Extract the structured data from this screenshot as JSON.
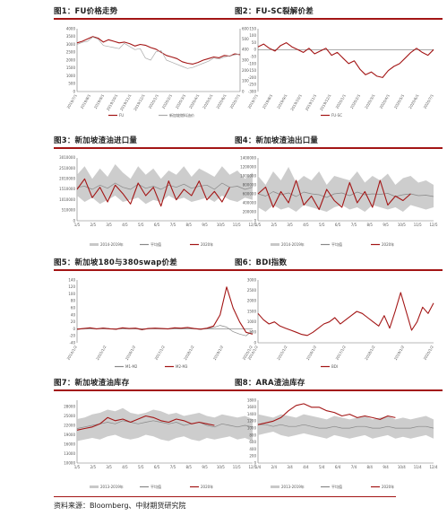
{
  "footer": "资料来源：Bloomberg、中财期货研究院",
  "colors": {
    "accent": "#a31515",
    "series_main": "#a31515",
    "series_gray": "#aaaaaa",
    "band": "#c8c8c8",
    "avg": "#888888"
  },
  "chart_data": [
    {
      "id": "fu-price",
      "type": "line",
      "title": "图1：FU价格走势",
      "x_ticks": [
        "2019/7/1",
        "2019/8/1",
        "2019/9/1",
        "2019/10/1",
        "2019/11/1",
        "2019/12/1",
        "2020/1/1",
        "2020/2/1",
        "2020/3/1",
        "2020/4/1",
        "2020/5/1",
        "2020/6/1",
        "2020/7/1"
      ],
      "ylim": [
        0,
        4000
      ],
      "y_ticks": [
        "0",
        "500",
        "1000",
        "1500",
        "2000",
        "2500",
        "3000",
        "3500",
        "4000"
      ],
      "y2lim": [
        0,
        600
      ],
      "y2_ticks": [
        "0",
        "100",
        "200",
        "300",
        "400",
        "500",
        "600"
      ],
      "series": [
        {
          "name": "FU",
          "axis": "left",
          "color": "#a31515",
          "values": [
            3100,
            3200,
            3350,
            3500,
            3400,
            3150,
            3300,
            3200,
            3100,
            3150,
            3050,
            2900,
            3000,
            2950,
            2800,
            2700,
            2500,
            2300,
            2200,
            2100,
            1900,
            1800,
            1750,
            1850,
            2000,
            2100,
            2200,
            2150,
            2300,
            2250,
            2400,
            2350
          ]
        },
        {
          "name": "新加坡燃料油价",
          "axis": "right",
          "color": "#aaaaaa",
          "values": [
            450,
            470,
            480,
            520,
            500,
            440,
            430,
            420,
            410,
            460,
            430,
            400,
            410,
            320,
            300,
            380,
            390,
            300,
            280,
            260,
            240,
            220,
            230,
            250,
            270,
            290,
            320,
            310,
            330,
            340,
            350,
            360
          ]
        }
      ]
    },
    {
      "id": "fu-sc-spread",
      "type": "line",
      "title": "图2：FU-SC裂解价差",
      "x_ticks": [
        "2019/7/1",
        "2019/8/1",
        "2019/9/1",
        "2019/10/1",
        "2019/11/1",
        "2019/12/1",
        "2020/1/1",
        "2020/2/1",
        "2020/3/1",
        "2020/4/1",
        "2020/5/1",
        "2020/6/1",
        "2020/7/1"
      ],
      "ylim": [
        -300,
        150
      ],
      "y_ticks": [
        "-300",
        "-250",
        "-200",
        "-150",
        "-100",
        "-50",
        "0",
        "50",
        "100",
        "150"
      ],
      "series": [
        {
          "name": "FU-SC",
          "color": "#a31515",
          "values": [
            20,
            40,
            10,
            -10,
            30,
            50,
            20,
            0,
            -20,
            10,
            -30,
            -10,
            10,
            -40,
            -20,
            -60,
            -100,
            -80,
            -140,
            -180,
            -160,
            -190,
            -200,
            -150,
            -120,
            -100,
            -60,
            -20,
            10,
            -20,
            -40,
            0
          ]
        }
      ]
    },
    {
      "id": "sg-imports",
      "type": "line",
      "title": "图3：新加坡渣油进口量",
      "x_ticks": [
        "1/5",
        "2/5",
        "3/5",
        "4/5",
        "5/5",
        "6/5",
        "7/5",
        "8/5",
        "9/5",
        "10/5",
        "11/5",
        "12/5"
      ],
      "ylim": [
        0,
        3000000
      ],
      "y_ticks": [
        "0",
        "510000",
        "1010000",
        "1510000",
        "2010000",
        "2510000",
        "3010000"
      ],
      "series": [
        {
          "name": "2014-2019年",
          "kind": "band",
          "color": "#c8c8c8",
          "values_low": [
            1200000,
            900000,
            1100000,
            800000,
            1000000,
            1200000,
            900000,
            1000000,
            1100000,
            800000,
            1000000,
            900000,
            1200000,
            1000000,
            1100000,
            900000,
            1000000,
            1100000,
            900000,
            1200000,
            1000000,
            900000,
            1100000,
            1000000
          ],
          "values_high": [
            2200000,
            2600000,
            2000000,
            2500000,
            2100000,
            2700000,
            2300000,
            2000000,
            2600000,
            2200000,
            2500000,
            2000000,
            2400000,
            2200000,
            2600000,
            2100000,
            2500000,
            2300000,
            2100000,
            2600000,
            2200000,
            2400000,
            2000000,
            2300000
          ]
        },
        {
          "name": "平均值",
          "color": "#888888",
          "values": [
            1600000,
            1650000,
            1500000,
            1700000,
            1550000,
            1800000,
            1600000,
            1500000,
            1750000,
            1550000,
            1650000,
            1500000,
            1700000,
            1600000,
            1750000,
            1550000,
            1650000,
            1700000,
            1500000,
            1800000,
            1600000,
            1650000,
            1500000,
            1600000
          ]
        },
        {
          "name": "2020年",
          "color": "#a31515",
          "values": [
            1500000,
            2000000,
            1100000,
            1600000,
            900000,
            1700000,
            1300000,
            800000,
            1800000,
            1200000,
            1600000,
            700000,
            1900000,
            1000000,
            1500000,
            1200000,
            1900000,
            1000000,
            1400000,
            900000,
            1600000
          ]
        }
      ]
    },
    {
      "id": "sg-exports",
      "type": "line",
      "title": "图4：新加坡渣油出口量",
      "x_ticks": [
        "1/5",
        "2/5",
        "3/5",
        "4/5",
        "5/5",
        "6/5",
        "7/5",
        "8/5",
        "9/5",
        "10/5",
        "11/5",
        "12/5"
      ],
      "ylim": [
        0,
        1400000
      ],
      "y_ticks": [
        "0",
        "200000",
        "400000",
        "600000",
        "800000",
        "1000000",
        "1200000",
        "1400000"
      ],
      "series": [
        {
          "name": "2014-2019年",
          "kind": "band",
          "color": "#c8c8c8",
          "values_low": [
            300000,
            200000,
            350000,
            250000,
            300000,
            200000,
            350000,
            300000,
            250000,
            200000,
            300000,
            350000,
            250000,
            300000,
            200000,
            350000,
            300000,
            250000,
            300000,
            200000,
            350000,
            300000,
            250000,
            300000
          ],
          "values_high": [
            1000000,
            800000,
            1100000,
            900000,
            1200000,
            850000,
            1000000,
            900000,
            1100000,
            800000,
            1000000,
            950000,
            900000,
            1100000,
            850000,
            1000000,
            900000,
            1050000,
            800000,
            950000,
            1000000,
            850000,
            900000,
            800000
          ]
        },
        {
          "name": "平均值",
          "color": "#888888",
          "values": [
            600000,
            550000,
            650000,
            580000,
            620000,
            540000,
            640000,
            600000,
            580000,
            520000,
            600000,
            620000,
            560000,
            640000,
            580000,
            600000,
            590000,
            610000,
            540000,
            580000,
            600000,
            560000,
            570000,
            540000
          ]
        },
        {
          "name": "2020年",
          "color": "#a31515",
          "values": [
            600000,
            750000,
            300000,
            650000,
            400000,
            900000,
            350000,
            550000,
            250000,
            700000,
            450000,
            300000,
            850000,
            400000,
            650000,
            300000,
            900000,
            350000,
            550000,
            450000,
            600000
          ]
        }
      ]
    },
    {
      "id": "sg-180-380",
      "type": "line",
      "title": "图5：新加坡180与380swap价差",
      "x_ticks": [
        "2014/1/2",
        "2015/1/2",
        "2016/1/2",
        "2017/1/2",
        "2018/1/2",
        "2019/1/2",
        "2020/1/2"
      ],
      "ylim": [
        -40,
        140
      ],
      "y_ticks": [
        "-40",
        "-20",
        "0",
        "20",
        "40",
        "60",
        "80",
        "100",
        "120",
        "140"
      ],
      "series": [
        {
          "name": "M1-M2",
          "color": "#888888",
          "values": [
            -2,
            0,
            2,
            -1,
            3,
            1,
            -2,
            2,
            0,
            1,
            -3,
            2,
            1,
            0,
            -1,
            2,
            1,
            3,
            0,
            -2,
            1,
            4,
            10,
            5,
            -8,
            -15,
            -20,
            -5
          ]
        },
        {
          "name": "M2-M3",
          "color": "#a31515",
          "values": [
            -1,
            1,
            3,
            0,
            2,
            0,
            -1,
            3,
            1,
            2,
            -2,
            1,
            2,
            1,
            0,
            3,
            2,
            4,
            1,
            -1,
            2,
            8,
            40,
            120,
            60,
            20,
            -10,
            -15
          ]
        }
      ]
    },
    {
      "id": "bdi",
      "type": "line",
      "title": "图6：BDI指数",
      "x_ticks": [
        "2014/1/2",
        "2015/1/2",
        "2016/1/2",
        "2017/1/2",
        "2018/1/2",
        "2019/1/2",
        "2020/1/2"
      ],
      "ylim": [
        0,
        3000
      ],
      "y_ticks": [
        "0",
        "500",
        "1000",
        "1500",
        "2000",
        "2500",
        "3000"
      ],
      "series": [
        {
          "name": "BDI",
          "color": "#a31515",
          "values": [
            1400,
            1100,
            900,
            1000,
            800,
            700,
            600,
            500,
            400,
            350,
            500,
            700,
            900,
            1000,
            1200,
            900,
            1100,
            1300,
            1500,
            1400,
            1200,
            1000,
            800,
            1300,
            700,
            1500,
            2400,
            1500,
            600,
            1000,
            1700,
            1400,
            1900
          ]
        }
      ]
    },
    {
      "id": "sg-inventory",
      "type": "line",
      "title": "图7：新加坡渣油库存",
      "x_ticks": [
        "1/5",
        "2/5",
        "3/5",
        "4/5",
        "5/5",
        "6/5",
        "7/5",
        "8/5",
        "9/5",
        "10/5",
        "11/5",
        "12/5"
      ],
      "ylim": [
        10000,
        30000
      ],
      "y_ticks": [
        "10000",
        "13000",
        "16000",
        "19000",
        "22000",
        "25000",
        "28000"
      ],
      "series": [
        {
          "name": "2013-2019年",
          "kind": "band",
          "color": "#c8c8c8",
          "values_low": [
            17000,
            17500,
            18000,
            17500,
            18500,
            19000,
            18000,
            17500,
            18000,
            19000,
            18500,
            17500,
            17000,
            18000,
            18500,
            17500,
            17000,
            18000,
            17500,
            18000,
            18500,
            17500,
            18000,
            17000
          ],
          "values_high": [
            24000,
            24500,
            25500,
            26000,
            27000,
            26500,
            27500,
            26000,
            25500,
            26000,
            27000,
            26500,
            25500,
            26000,
            25000,
            25500,
            26000,
            25000,
            24500,
            25500,
            25000,
            24500,
            25000,
            24000
          ]
        },
        {
          "name": "平均值",
          "color": "#888888",
          "values": [
            21000,
            21500,
            22000,
            22500,
            23000,
            22500,
            23500,
            23000,
            22500,
            23000,
            23500,
            23000,
            22500,
            23000,
            22000,
            22500,
            23000,
            22000,
            21500,
            22500,
            22000,
            21500,
            22000,
            21500
          ]
        },
        {
          "name": "2020年",
          "color": "#a31515",
          "values": [
            20500,
            21000,
            21500,
            22500,
            24500,
            23500,
            24000,
            23000,
            24000,
            25000,
            24500,
            23500,
            23000,
            24000,
            23500,
            22500,
            23000,
            22500,
            22000
          ]
        }
      ]
    },
    {
      "id": "ara-inventory",
      "type": "line",
      "title": "图8：ARA渣油库存",
      "x_ticks": [
        "1/4",
        "2/4",
        "3/4",
        "4/4",
        "5/4",
        "6/4",
        "7/4",
        "8/4",
        "9/4",
        "10/4",
        "11/4",
        "12/4"
      ],
      "ylim": [
        0,
        1800
      ],
      "y_ticks": [
        "0",
        "200",
        "400",
        "600",
        "800",
        "1000",
        "1200",
        "1400",
        "1600",
        "1800"
      ],
      "series": [
        {
          "name": "2013-2019年",
          "kind": "band",
          "color": "#c8c8c8",
          "values_low": [
            800,
            850,
            900,
            800,
            750,
            800,
            850,
            800,
            750,
            700,
            800,
            750,
            700,
            750,
            800,
            700,
            750,
            800,
            700,
            750,
            700,
            750,
            800,
            700
          ],
          "values_high": [
            1400,
            1350,
            1300,
            1400,
            1350,
            1300,
            1400,
            1350,
            1300,
            1250,
            1350,
            1300,
            1250,
            1300,
            1350,
            1250,
            1300,
            1350,
            1250,
            1300,
            1250,
            1300,
            1350,
            1250
          ]
        },
        {
          "name": "平均值",
          "color": "#888888",
          "values": [
            1100,
            1100,
            1050,
            1100,
            1050,
            1050,
            1100,
            1050,
            1000,
            1000,
            1050,
            1000,
            1000,
            1050,
            1050,
            1000,
            1000,
            1050,
            1000,
            1000,
            1000,
            1050,
            1050,
            1000
          ]
        },
        {
          "name": "2020年",
          "color": "#a31515",
          "values": [
            1100,
            1150,
            1200,
            1300,
            1500,
            1650,
            1700,
            1600,
            1600,
            1500,
            1450,
            1350,
            1400,
            1300,
            1350,
            1300,
            1250,
            1350,
            1300
          ]
        }
      ]
    }
  ]
}
